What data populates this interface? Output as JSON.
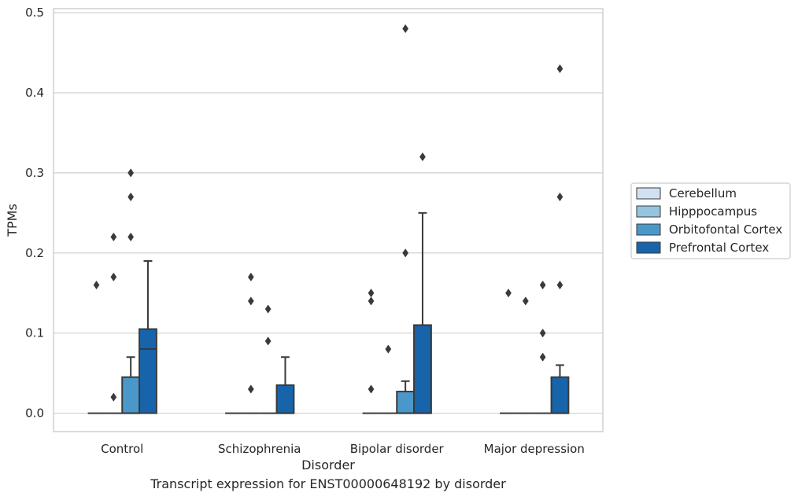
{
  "caption": "Transcript expression for ENST00000648192 by disorder",
  "chart_data": {
    "type": "box",
    "title": "",
    "xlabel": "Disorder",
    "ylabel": "TPMs",
    "ylim": [
      -0.023,
      0.505
    ],
    "yticks": [
      0.0,
      0.1,
      0.2,
      0.3,
      0.4,
      0.5
    ],
    "ytick_labels": [
      "0.0",
      "0.1",
      "0.2",
      "0.3",
      "0.4",
      "0.5"
    ],
    "grid": "horizontal",
    "legend_position": "right",
    "categories": [
      "Control",
      "Schizophrenia",
      "Bipolar disorder",
      "Major depression"
    ],
    "series": [
      {
        "name": "Cerebellum",
        "color": "#d0e1f2",
        "boxes": [
          {
            "q1": 0,
            "median": 0,
            "q3": 0,
            "whisker_low": 0,
            "whisker_high": 0,
            "outliers": [
              0.16
            ]
          },
          {
            "q1": 0,
            "median": 0,
            "q3": 0,
            "whisker_low": 0,
            "whisker_high": 0,
            "outliers": []
          },
          {
            "q1": 0,
            "median": 0,
            "q3": 0,
            "whisker_low": 0,
            "whisker_high": 0,
            "outliers": [
              0.15,
              0.14,
              0.03
            ]
          },
          {
            "q1": 0,
            "median": 0,
            "q3": 0,
            "whisker_low": 0,
            "whisker_high": 0,
            "outliers": [
              0.15
            ]
          }
        ]
      },
      {
        "name": "Hipppocampus",
        "color": "#94c4df",
        "boxes": [
          {
            "q1": 0,
            "median": 0,
            "q3": 0,
            "whisker_low": 0,
            "whisker_high": 0,
            "outliers": [
              0.22,
              0.17,
              0.02
            ]
          },
          {
            "q1": 0,
            "median": 0,
            "q3": 0,
            "whisker_low": 0,
            "whisker_high": 0,
            "outliers": [
              0.17,
              0.14,
              0.03
            ]
          },
          {
            "q1": 0,
            "median": 0,
            "q3": 0,
            "whisker_low": 0,
            "whisker_high": 0,
            "outliers": [
              0.08
            ]
          },
          {
            "q1": 0,
            "median": 0,
            "q3": 0,
            "whisker_low": 0,
            "whisker_high": 0,
            "outliers": [
              0.14
            ]
          }
        ]
      },
      {
        "name": "Orbitofontal Cortex",
        "color": "#4a98c9",
        "boxes": [
          {
            "q1": 0,
            "median": 0,
            "q3": 0.045,
            "whisker_low": 0,
            "whisker_high": 0.07,
            "outliers": [
              0.3,
              0.27,
              0.22
            ]
          },
          {
            "q1": 0,
            "median": 0,
            "q3": 0,
            "whisker_low": 0,
            "whisker_high": 0,
            "outliers": [
              0.13,
              0.09
            ]
          },
          {
            "q1": 0,
            "median": 0,
            "q3": 0.027,
            "whisker_low": 0,
            "whisker_high": 0.04,
            "outliers": [
              0.48,
              0.2
            ]
          },
          {
            "q1": 0,
            "median": 0,
            "q3": 0,
            "whisker_low": 0,
            "whisker_high": 0,
            "outliers": [
              0.16,
              0.1,
              0.07
            ]
          }
        ]
      },
      {
        "name": "Prefrontal Cortex",
        "color": "#1764ab",
        "boxes": [
          {
            "q1": 0,
            "median": 0.08,
            "q3": 0.105,
            "whisker_low": 0,
            "whisker_high": 0.19,
            "outliers": []
          },
          {
            "q1": 0,
            "median": 0,
            "q3": 0.035,
            "whisker_low": 0,
            "whisker_high": 0.07,
            "outliers": []
          },
          {
            "q1": 0,
            "median": 0,
            "q3": 0.11,
            "whisker_low": 0,
            "whisker_high": 0.25,
            "outliers": [
              0.32
            ]
          },
          {
            "q1": 0,
            "median": 0,
            "q3": 0.045,
            "whisker_low": 0,
            "whisker_high": 0.06,
            "outliers": [
              0.43,
              0.27,
              0.16
            ]
          }
        ]
      }
    ]
  }
}
